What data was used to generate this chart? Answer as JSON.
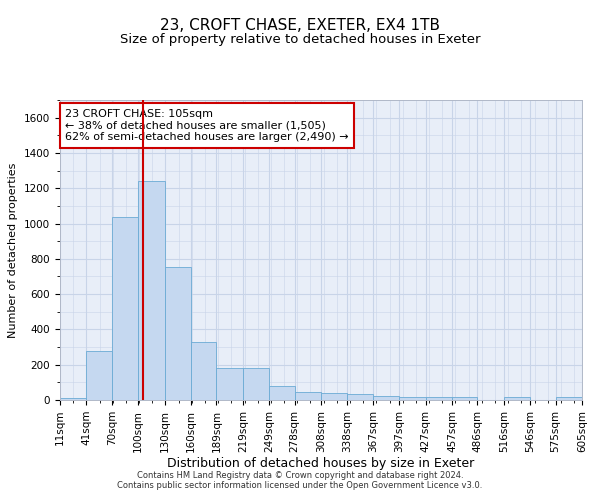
{
  "title": "23, CROFT CHASE, EXETER, EX4 1TB",
  "subtitle": "Size of property relative to detached houses in Exeter",
  "xlabel": "Distribution of detached houses by size in Exeter",
  "ylabel": "Number of detached properties",
  "footer_line1": "Contains HM Land Registry data © Crown copyright and database right 2024.",
  "footer_line2": "Contains public sector information licensed under the Open Government Licence v3.0.",
  "annotation_line1": "23 CROFT CHASE: 105sqm",
  "annotation_line2": "← 38% of detached houses are smaller (1,505)",
  "annotation_line3": "62% of semi-detached houses are larger (2,490) →",
  "property_size": 105,
  "bin_edges": [
    11,
    41,
    70,
    100,
    130,
    160,
    189,
    219,
    249,
    278,
    308,
    338,
    367,
    397,
    427,
    457,
    486,
    516,
    546,
    575,
    605
  ],
  "bar_heights": [
    10,
    280,
    1035,
    1240,
    755,
    330,
    180,
    180,
    80,
    45,
    40,
    35,
    20,
    15,
    15,
    15,
    0,
    15,
    0,
    15
  ],
  "bar_color": "#c5d8f0",
  "bar_edge_color": "#6aaad4",
  "vline_color": "#cc0000",
  "vline_x": 105,
  "ylim": [
    0,
    1700
  ],
  "yticks": [
    0,
    200,
    400,
    600,
    800,
    1000,
    1200,
    1400,
    1600
  ],
  "grid_color": "#c8d4e8",
  "bg_color": "#e8eef8",
  "title_fontsize": 11,
  "subtitle_fontsize": 9.5,
  "ylabel_fontsize": 8,
  "xlabel_fontsize": 9,
  "tick_fontsize": 7.5,
  "annotation_fontsize": 8,
  "footer_fontsize": 6,
  "annotation_box_color": "#ffffff",
  "annotation_box_edge": "#cc0000"
}
